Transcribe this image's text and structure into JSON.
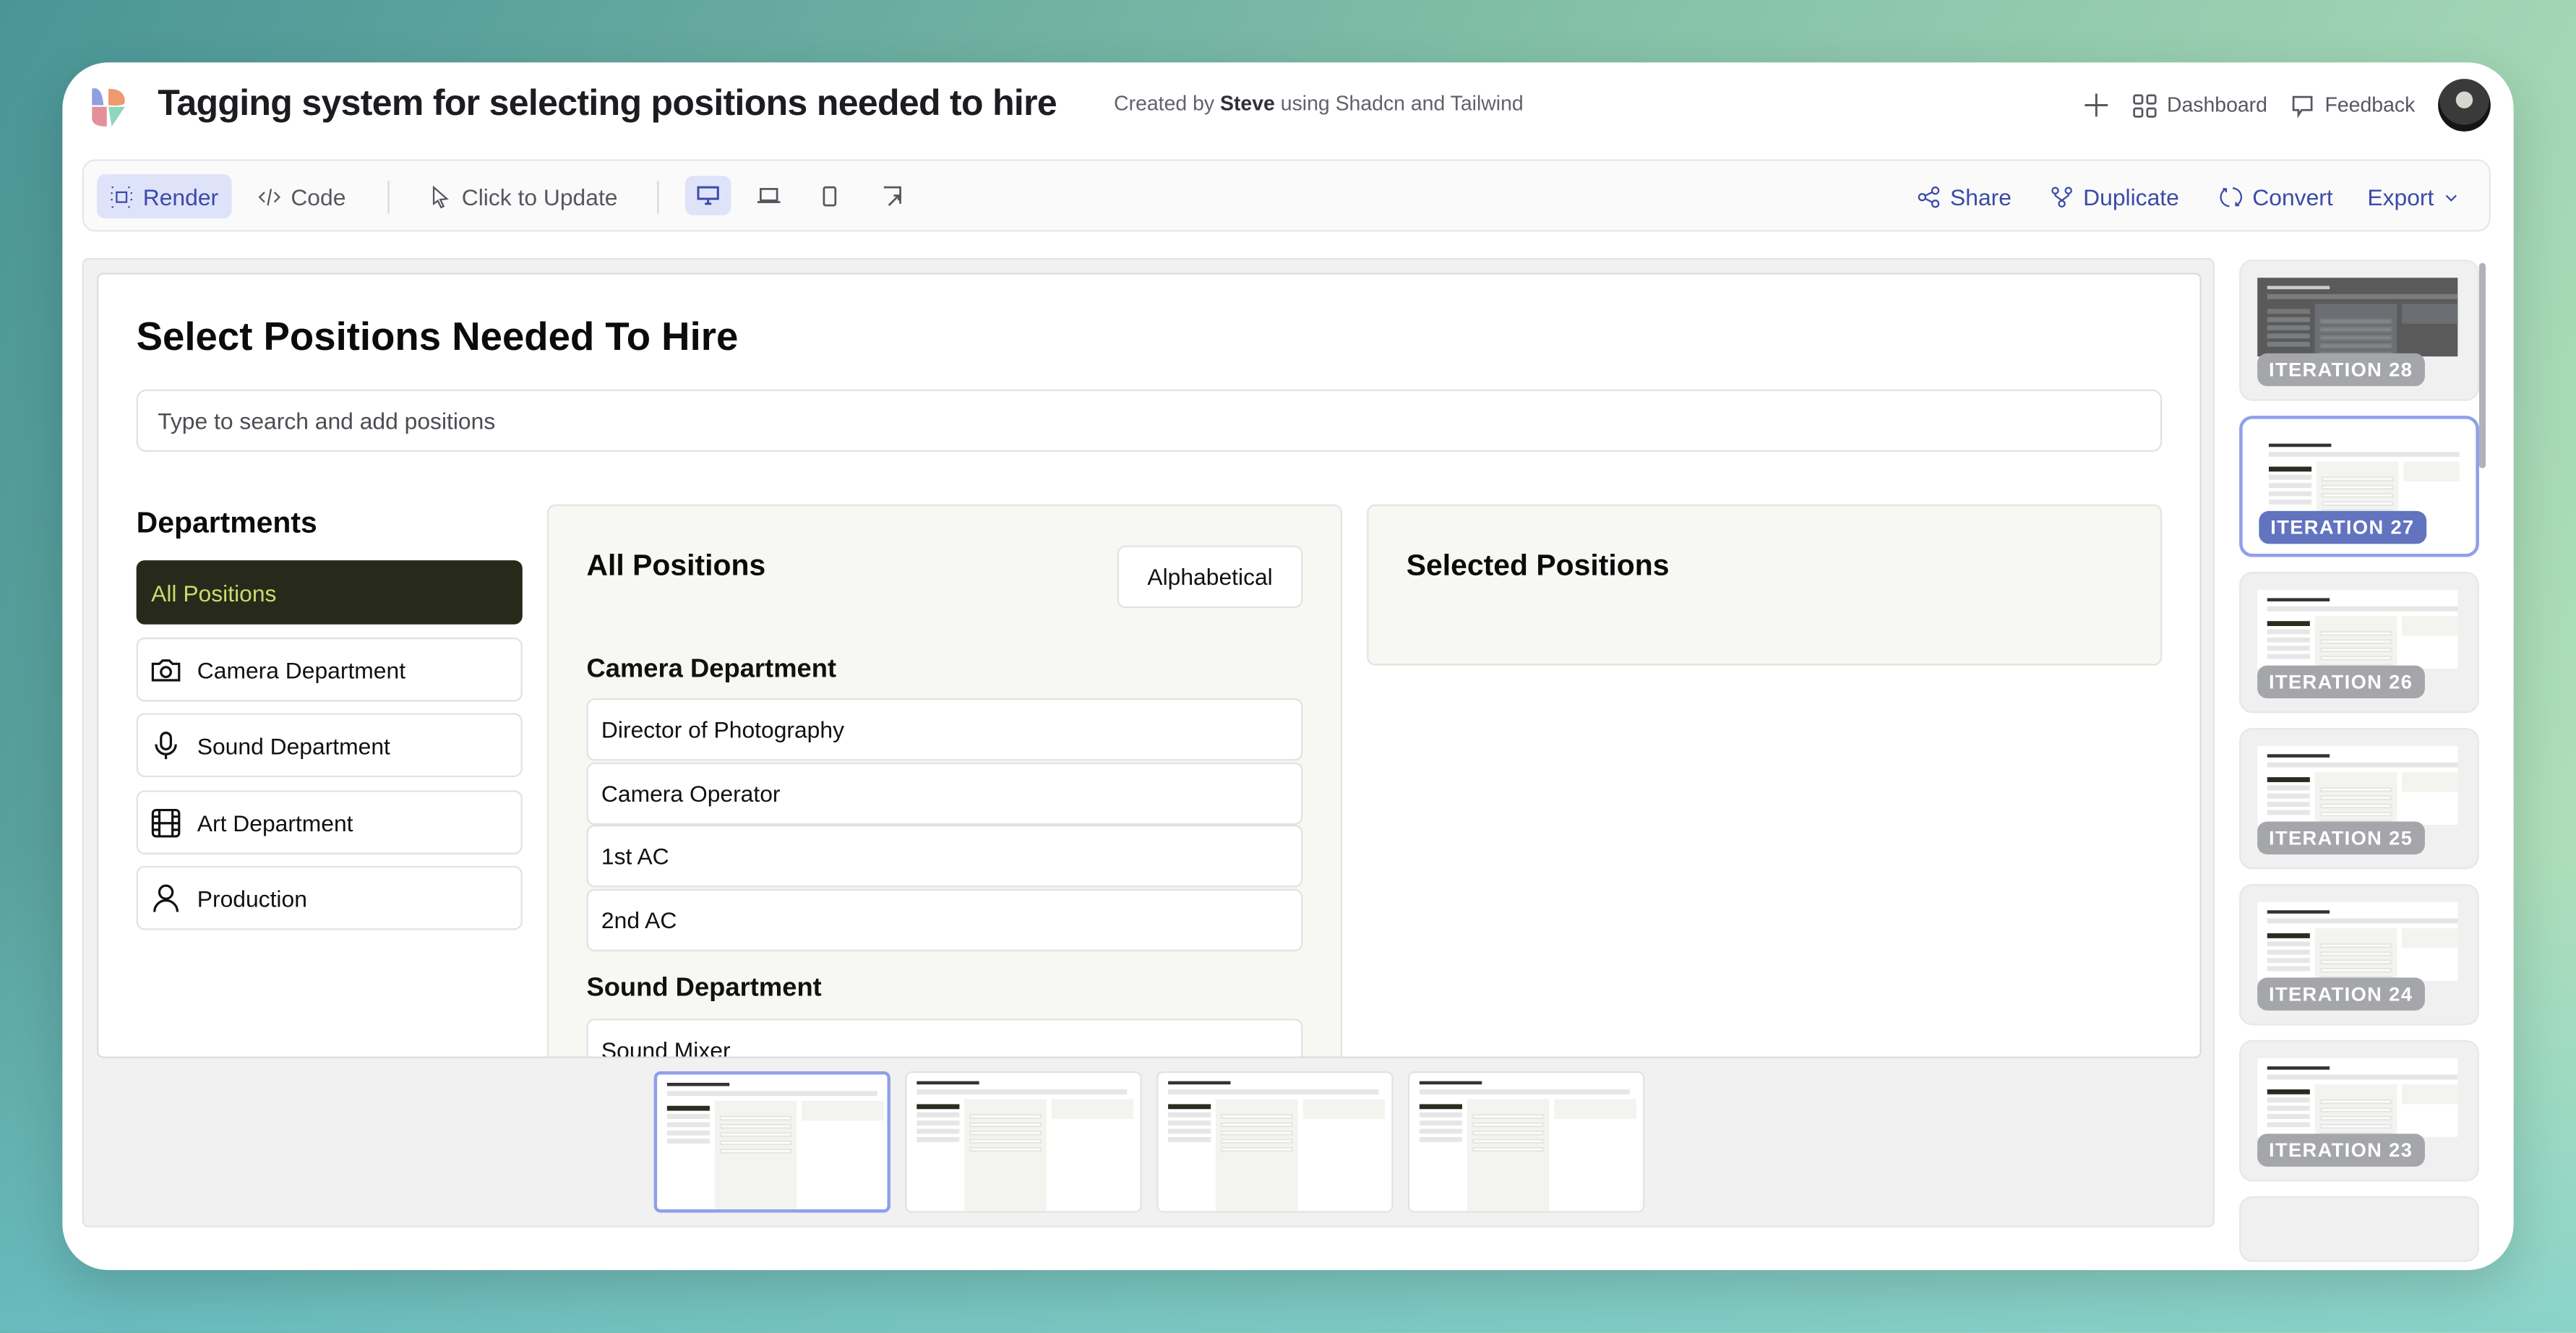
{
  "header": {
    "title": "Tagging system for selecting positions needed to hire",
    "subtitle_prefix": "Created by",
    "author": "Steve",
    "subtitle_suffix": "using Shadcn and Tailwind",
    "dashboard": "Dashboard",
    "feedback": "Feedback"
  },
  "toolbar": {
    "render": "Render",
    "code": "Code",
    "click_to_update": "Click to Update",
    "share": "Share",
    "duplicate": "Duplicate",
    "convert": "Convert",
    "export": "Export",
    "selected_device": "desktop"
  },
  "preview": {
    "title": "Select Positions Needed To Hire",
    "search_placeholder": "Type to search and add positions",
    "departments_heading": "Departments",
    "departments": [
      {
        "label": "All Positions",
        "icon": "none",
        "selected": true
      },
      {
        "label": "Camera Department",
        "icon": "camera-icon"
      },
      {
        "label": "Sound Department",
        "icon": "mic-icon"
      },
      {
        "label": "Art Department",
        "icon": "film-icon"
      },
      {
        "label": "Production",
        "icon": "user-icon"
      }
    ],
    "all_positions": {
      "title": "All Positions",
      "sort": "Alphabetical",
      "groups": [
        {
          "name": "Camera Department",
          "items": [
            "Director of Photography",
            "Camera Operator",
            "1st AC",
            "2nd AC"
          ]
        },
        {
          "name": "Sound Department",
          "items": [
            "Sound Mixer"
          ]
        }
      ]
    },
    "selected_positions": {
      "title": "Selected Positions"
    }
  },
  "iterations": [
    {
      "label": "ITERATION 28"
    },
    {
      "label": "ITERATION 27",
      "selected": true
    },
    {
      "label": "ITERATION 26"
    },
    {
      "label": "ITERATION 25"
    },
    {
      "label": "ITERATION 24"
    },
    {
      "label": "ITERATION 23"
    }
  ],
  "colors": {
    "accent": "#3b4aa8",
    "selected_dept_bg": "#272a1b",
    "selected_dept_text": "#c8dc6c",
    "badge_selected": "#6273c0",
    "badge": "#a5a6aa"
  }
}
